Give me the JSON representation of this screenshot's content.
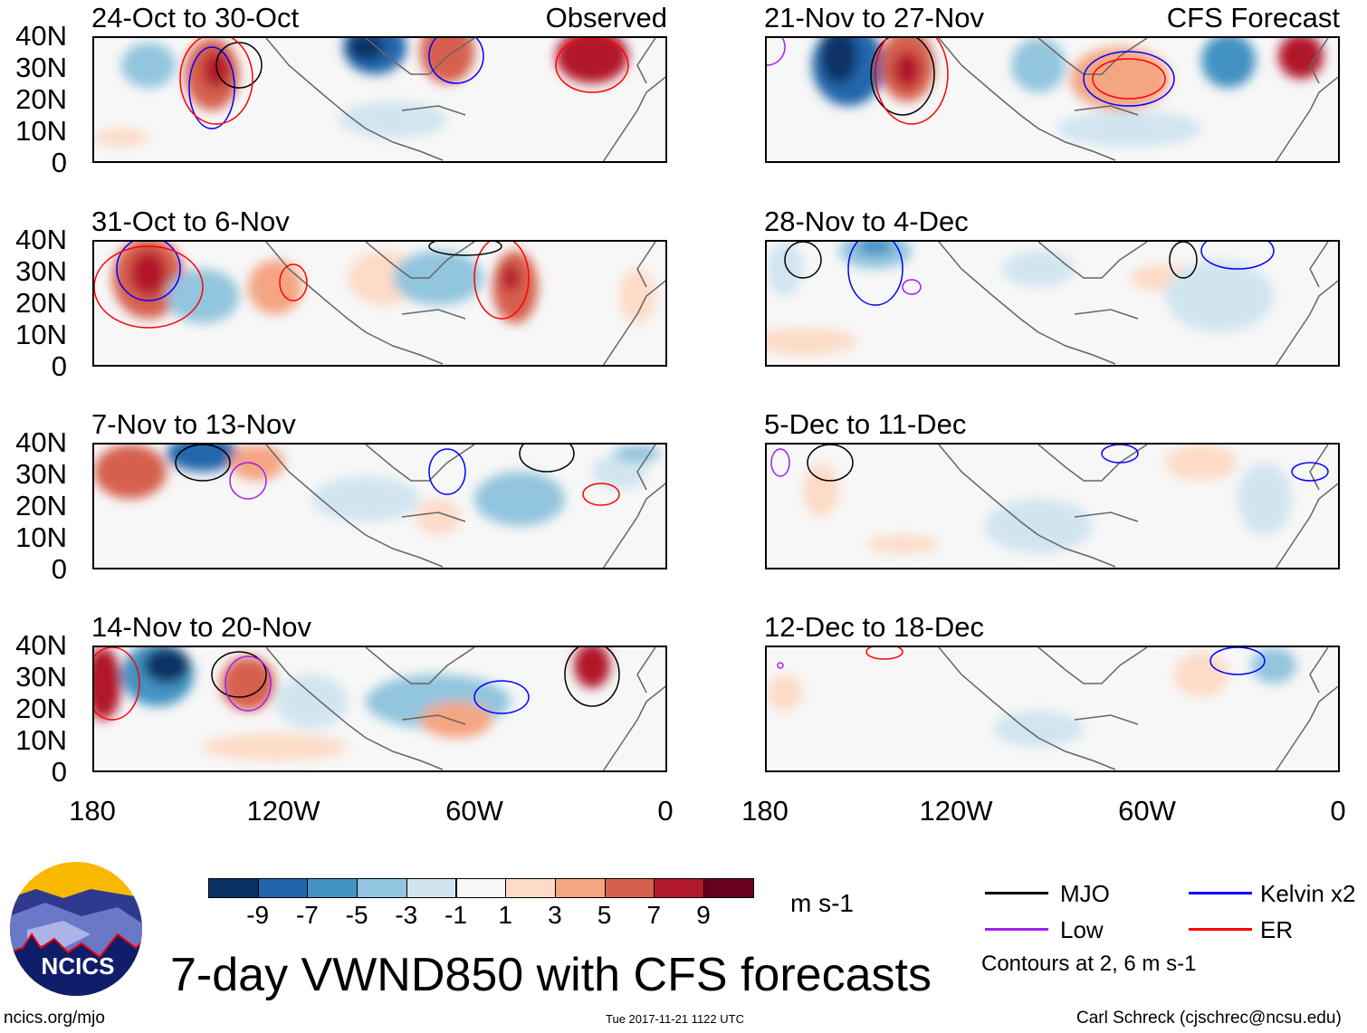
{
  "panels": [
    {
      "title": "24-Oct to 30-Oct",
      "tag": "Observed"
    },
    {
      "title": "31-Oct to 6-Nov",
      "tag": ""
    },
    {
      "title": "7-Nov to 13-Nov",
      "tag": ""
    },
    {
      "title": "14-Nov to 20-Nov",
      "tag": ""
    },
    {
      "title": "21-Nov to 27-Nov",
      "tag": "CFS Forecast"
    },
    {
      "title": "28-Nov to 4-Dec",
      "tag": ""
    },
    {
      "title": "5-Dec to 11-Dec",
      "tag": ""
    },
    {
      "title": "12-Dec to 18-Dec",
      "tag": ""
    }
  ],
  "lat_ticks": [
    "40N",
    "30N",
    "20N",
    "10N",
    "0"
  ],
  "lon_ticks": [
    "180",
    "120W",
    "60W",
    "0"
  ],
  "colorbar": {
    "colors": [
      "#0a3163",
      "#2166ac",
      "#4393c3",
      "#92c5de",
      "#d1e5f0",
      "#f7f7f7",
      "#fddbc7",
      "#f4a582",
      "#d6604d",
      "#b2182b",
      "#67001f"
    ],
    "labels": [
      "-9",
      "-7",
      "-5",
      "-3",
      "-1",
      "1",
      "3",
      "5",
      "7",
      "9"
    ],
    "units": "m s-1"
  },
  "title": "7-day VWND850 with CFS forecasts",
  "legend": [
    {
      "label": "MJO",
      "color": "#000000"
    },
    {
      "label": "Kelvin x2",
      "color": "#0000ff"
    },
    {
      "label": "Low",
      "color": "#a020f0"
    },
    {
      "label": "ER",
      "color": "#ff0000"
    }
  ],
  "contour_note": "Contours at 2, 6 m s-1",
  "logo_text": "NCICS",
  "footer": {
    "left": "ncics.org/mjo",
    "center": "Tue 2017-11-21 1122 UTC",
    "right": "Carl Schreck (cjschrec@ncsu.edu)"
  }
}
